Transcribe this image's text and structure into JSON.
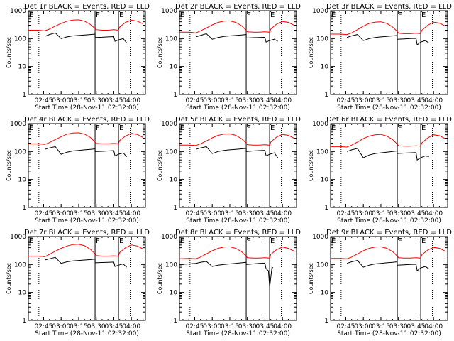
{
  "figure": {
    "xlabel": "Start Time (28-Nov-11 02:32:00)",
    "ylabel": "Counts/sec",
    "x_tick_labels": [
      "02:45",
      "03:00",
      "03:15",
      "03:30",
      "03:45",
      "04:00"
    ],
    "y_tick_labels": [
      "1",
      "10",
      "100",
      "1000"
    ],
    "colors": {
      "events": "#000000",
      "lld": "#ff0000",
      "axes": "#000000"
    }
  },
  "chart_data": [
    {
      "type": "line",
      "title": "Det 1r BLACK = Events, RED = LLD",
      "xlim": [
        "02:32",
        "04:12"
      ],
      "ylim": [
        1,
        1000
      ],
      "yscale": "log",
      "markers": [
        {
          "label": "E",
          "x": "02:32"
        },
        {
          "label": "F",
          "x": "03:29"
        },
        {
          "label": "E",
          "x": "03:49"
        }
      ],
      "dotted_lines_x": [
        "02:41",
        "03:59"
      ],
      "lld": {
        "x": [
          "02:32",
          "02:40",
          "02:46",
          "02:50",
          "02:55",
          "03:00",
          "03:05",
          "03:10",
          "03:15",
          "03:20",
          "03:25",
          "03:29",
          "03:30",
          "03:35",
          "03:40",
          "03:45",
          "03:49",
          "03:50",
          "03:55",
          "04:00",
          "04:05",
          "04:10"
        ],
        "y": [
          200,
          200,
          190,
          220,
          280,
          350,
          420,
          460,
          470,
          420,
          320,
          230,
          210,
          200,
          200,
          210,
          200,
          260,
          380,
          460,
          420,
          340
        ]
      },
      "events": {
        "x": [
          "02:46",
          "02:50",
          "02:55",
          "03:00",
          "03:05",
          "03:10",
          "03:15",
          "03:20",
          "03:25",
          "03:29",
          "03:29",
          "03:35",
          "03:40",
          "03:45",
          "03:46",
          "03:49",
          "03:53",
          "03:56"
        ],
        "y": [
          120,
          140,
          160,
          100,
          115,
          125,
          130,
          135,
          140,
          145,
          110,
          112,
          115,
          118,
          80,
          90,
          100,
          70
        ]
      }
    },
    {
      "type": "line",
      "title": "Det 2r BLACK = Events, RED = LLD",
      "xlim": [
        "02:32",
        "04:12"
      ],
      "ylim": [
        1,
        1000
      ],
      "yscale": "log",
      "markers": [
        {
          "label": "E",
          "x": "02:32"
        },
        {
          "label": "F",
          "x": "03:29"
        },
        {
          "label": "E",
          "x": "03:49"
        }
      ],
      "dotted_lines_x": [
        "02:41",
        "03:59"
      ],
      "lld": {
        "x": [
          "02:32",
          "02:40",
          "02:46",
          "02:50",
          "02:55",
          "03:00",
          "03:05",
          "03:10",
          "03:15",
          "03:20",
          "03:25",
          "03:29",
          "03:30",
          "03:35",
          "03:40",
          "03:45",
          "03:49",
          "03:50",
          "03:55",
          "04:00",
          "04:05",
          "04:10"
        ],
        "y": [
          170,
          170,
          160,
          190,
          240,
          310,
          380,
          420,
          430,
          380,
          290,
          200,
          175,
          170,
          170,
          175,
          170,
          220,
          330,
          410,
          380,
          300
        ]
      },
      "events": {
        "x": [
          "02:46",
          "02:50",
          "02:55",
          "03:00",
          "03:05",
          "03:10",
          "03:15",
          "03:20",
          "03:25",
          "03:29",
          "03:29",
          "03:35",
          "03:40",
          "03:45",
          "03:46",
          "03:49",
          "03:53",
          "03:56"
        ],
        "y": [
          115,
          130,
          150,
          95,
          110,
          120,
          125,
          130,
          135,
          140,
          105,
          108,
          110,
          112,
          75,
          85,
          95,
          80
        ]
      }
    },
    {
      "type": "line",
      "title": "Det 3r BLACK = Events, RED = LLD",
      "xlim": [
        "02:32",
        "04:12"
      ],
      "ylim": [
        1,
        1000
      ],
      "yscale": "log",
      "markers": [
        {
          "label": "E",
          "x": "02:32"
        },
        {
          "label": "F",
          "x": "03:29"
        },
        {
          "label": "E",
          "x": "03:49"
        }
      ],
      "dotted_lines_x": [
        "02:41",
        "03:59"
      ],
      "lld": {
        "x": [
          "02:32",
          "02:40",
          "02:46",
          "02:50",
          "02:55",
          "03:00",
          "03:05",
          "03:10",
          "03:15",
          "03:20",
          "03:25",
          "03:29",
          "03:30",
          "03:35",
          "03:40",
          "03:45",
          "03:49",
          "03:50",
          "03:55",
          "04:00",
          "04:05",
          "04:10"
        ],
        "y": [
          145,
          145,
          140,
          160,
          210,
          280,
          350,
          390,
          400,
          350,
          260,
          180,
          155,
          150,
          150,
          155,
          150,
          200,
          300,
          390,
          360,
          280
        ]
      },
      "events": {
        "x": [
          "02:46",
          "02:50",
          "02:55",
          "03:00",
          "03:05",
          "03:10",
          "03:15",
          "03:20",
          "03:25",
          "03:29",
          "03:29",
          "03:35",
          "03:40",
          "03:45",
          "03:46",
          "03:49",
          "03:53",
          "03:56"
        ],
        "y": [
          110,
          125,
          140,
          85,
          100,
          110,
          115,
          120,
          125,
          130,
          95,
          98,
          100,
          102,
          60,
          75,
          85,
          70
        ]
      }
    },
    {
      "type": "line",
      "title": "Det 4r BLACK = Events, RED = LLD",
      "xlim": [
        "02:32",
        "04:12"
      ],
      "ylim": [
        1,
        1000
      ],
      "yscale": "log",
      "markers": [
        {
          "label": "E",
          "x": "02:32"
        },
        {
          "label": "F",
          "x": "03:29"
        },
        {
          "label": "E",
          "x": "03:49"
        }
      ],
      "dotted_lines_x": [
        "02:41",
        "03:59"
      ],
      "lld": {
        "x": [
          "02:32",
          "02:40",
          "02:46",
          "02:50",
          "02:55",
          "03:00",
          "03:05",
          "03:10",
          "03:15",
          "03:20",
          "03:25",
          "03:29",
          "03:30",
          "03:35",
          "03:40",
          "03:45",
          "03:49",
          "03:50",
          "03:55",
          "04:00",
          "04:05",
          "04:10"
        ],
        "y": [
          190,
          190,
          180,
          210,
          270,
          340,
          420,
          460,
          470,
          420,
          320,
          220,
          195,
          190,
          190,
          195,
          190,
          250,
          360,
          450,
          410,
          320
        ]
      },
      "events": {
        "x": [
          "02:46",
          "02:50",
          "02:55",
          "03:00",
          "03:05",
          "03:10",
          "03:15",
          "03:20",
          "03:25",
          "03:29",
          "03:29",
          "03:35",
          "03:40",
          "03:45",
          "03:46",
          "03:49",
          "03:53",
          "03:56"
        ],
        "y": [
          120,
          135,
          150,
          80,
          95,
          105,
          110,
          115,
          120,
          125,
          100,
          102,
          105,
          108,
          70,
          80,
          90,
          65
        ]
      }
    },
    {
      "type": "line",
      "title": "Det 5r BLACK = Events, RED = LLD",
      "xlim": [
        "02:32",
        "04:12"
      ],
      "ylim": [
        1,
        1000
      ],
      "yscale": "log",
      "markers": [
        {
          "label": "E",
          "x": "02:32"
        },
        {
          "label": "F",
          "x": "03:29"
        },
        {
          "label": "E",
          "x": "03:49"
        }
      ],
      "dotted_lines_x": [
        "02:41",
        "03:59"
      ],
      "lld": {
        "x": [
          "02:32",
          "02:40",
          "02:46",
          "02:50",
          "02:55",
          "03:00",
          "03:05",
          "03:10",
          "03:15",
          "03:20",
          "03:25",
          "03:29",
          "03:30",
          "03:35",
          "03:40",
          "03:45",
          "03:49",
          "03:50",
          "03:55",
          "04:00",
          "04:05",
          "04:10"
        ],
        "y": [
          170,
          170,
          165,
          190,
          240,
          310,
          380,
          420,
          430,
          380,
          290,
          200,
          175,
          170,
          170,
          175,
          170,
          220,
          330,
          410,
          380,
          300
        ]
      },
      "events": {
        "x": [
          "02:46",
          "02:50",
          "02:55",
          "03:00",
          "03:05",
          "03:10",
          "03:15",
          "03:20",
          "03:25",
          "03:29",
          "03:29",
          "03:35",
          "03:40",
          "03:45",
          "03:46",
          "03:49",
          "03:53",
          "03:56"
        ],
        "y": [
          120,
          135,
          150,
          85,
          100,
          110,
          115,
          120,
          125,
          130,
          100,
          105,
          108,
          110,
          70,
          80,
          90,
          60
        ]
      }
    },
    {
      "type": "line",
      "title": "Det 6r BLACK = Events, RED = LLD",
      "xlim": [
        "02:32",
        "04:12"
      ],
      "ylim": [
        1,
        1000
      ],
      "yscale": "log",
      "markers": [
        {
          "label": "E",
          "x": "02:32"
        },
        {
          "label": "F",
          "x": "03:29"
        },
        {
          "label": "E",
          "x": "03:49"
        }
      ],
      "dotted_lines_x": [
        "02:41",
        "03:59"
      ],
      "lld": {
        "x": [
          "02:32",
          "02:40",
          "02:46",
          "02:50",
          "02:55",
          "03:00",
          "03:05",
          "03:10",
          "03:15",
          "03:20",
          "03:25",
          "03:29",
          "03:30",
          "03:35",
          "03:40",
          "03:45",
          "03:49",
          "03:50",
          "03:55",
          "04:00",
          "04:05",
          "04:10"
        ],
        "y": [
          150,
          150,
          145,
          170,
          220,
          290,
          360,
          400,
          410,
          360,
          270,
          185,
          160,
          155,
          155,
          160,
          155,
          205,
          310,
          400,
          370,
          290
        ]
      },
      "events": {
        "x": [
          "02:46",
          "02:50",
          "02:55",
          "03:00",
          "03:05",
          "03:10",
          "03:15",
          "03:20",
          "03:25",
          "03:29",
          "03:29",
          "03:35",
          "03:40",
          "03:45",
          "03:46",
          "03:49",
          "03:53",
          "03:56"
        ],
        "y": [
          100,
          115,
          130,
          60,
          75,
          85,
          90,
          95,
          100,
          105,
          85,
          88,
          90,
          92,
          50,
          60,
          70,
          65
        ]
      }
    },
    {
      "type": "line",
      "title": "Det 7r BLACK = Events, RED = LLD",
      "xlim": [
        "02:32",
        "04:12"
      ],
      "ylim": [
        1,
        1000
      ],
      "yscale": "log",
      "markers": [
        {
          "label": "E",
          "x": "02:32"
        },
        {
          "label": "F",
          "x": "03:29"
        },
        {
          "label": "E",
          "x": "03:49"
        }
      ],
      "dotted_lines_x": [
        "02:41",
        "03:59"
      ],
      "lld": {
        "x": [
          "02:32",
          "02:40",
          "02:46",
          "02:50",
          "02:55",
          "03:00",
          "03:05",
          "03:10",
          "03:15",
          "03:20",
          "03:25",
          "03:29",
          "03:30",
          "03:35",
          "03:40",
          "03:45",
          "03:49",
          "03:50",
          "03:55",
          "04:00",
          "04:05",
          "04:10"
        ],
        "y": [
          200,
          200,
          190,
          230,
          300,
          380,
          460,
          520,
          530,
          470,
          350,
          240,
          210,
          200,
          200,
          205,
          200,
          270,
          400,
          500,
          460,
          360
        ]
      },
      "events": {
        "x": [
          "02:46",
          "02:50",
          "02:55",
          "03:00",
          "03:05",
          "03:10",
          "03:15",
          "03:20",
          "03:25",
          "03:29",
          "03:29",
          "03:35",
          "03:40",
          "03:45",
          "03:46",
          "03:49",
          "03:53",
          "03:56"
        ],
        "y": [
          145,
          160,
          180,
          110,
          125,
          135,
          140,
          145,
          150,
          155,
          115,
          118,
          120,
          122,
          85,
          95,
          105,
          80
        ]
      }
    },
    {
      "type": "line",
      "title": "Det 8r BLACK = Events, RED = LLD",
      "xlim": [
        "02:32",
        "04:12"
      ],
      "ylim": [
        1,
        1000
      ],
      "yscale": "log",
      "markers": [
        {
          "label": "E",
          "x": "02:32"
        },
        {
          "label": "F",
          "x": "03:29"
        },
        {
          "label": "E",
          "x": "03:49"
        }
      ],
      "dotted_lines_x": [
        "02:41",
        "03:59"
      ],
      "lld": {
        "x": [
          "02:32",
          "02:40",
          "02:46",
          "02:50",
          "02:55",
          "03:00",
          "03:05",
          "03:10",
          "03:15",
          "03:20",
          "03:25",
          "03:29",
          "03:30",
          "03:35",
          "03:40",
          "03:45",
          "03:49",
          "03:50",
          "03:55",
          "04:00",
          "04:05",
          "04:10"
        ],
        "y": [
          160,
          165,
          160,
          185,
          240,
          310,
          380,
          420,
          430,
          380,
          290,
          200,
          175,
          170,
          170,
          175,
          170,
          230,
          340,
          420,
          380,
          300
        ]
      },
      "events": {
        "x": [
          "02:33",
          "02:40",
          "02:46",
          "02:50",
          "02:55",
          "03:00",
          "03:05",
          "03:10",
          "03:15",
          "03:20",
          "03:25",
          "03:29",
          "03:29",
          "03:35",
          "03:40",
          "03:45",
          "03:46",
          "03:48",
          "03:49",
          "03:51",
          "03:52"
        ],
        "y": [
          100,
          105,
          110,
          120,
          130,
          85,
          95,
          100,
          105,
          110,
          115,
          120,
          100,
          105,
          110,
          112,
          70,
          60,
          15,
          80,
          75
        ]
      }
    },
    {
      "type": "line",
      "title": "Det 9r BLACK = Events, RED = LLD",
      "xlim": [
        "02:32",
        "04:12"
      ],
      "ylim": [
        1,
        1000
      ],
      "yscale": "log",
      "markers": [
        {
          "label": "E",
          "x": "02:32"
        },
        {
          "label": "F",
          "x": "03:29"
        },
        {
          "label": "E",
          "x": "03:49"
        }
      ],
      "dotted_lines_x": [
        "02:41",
        "03:59"
      ],
      "lld": {
        "x": [
          "02:32",
          "02:40",
          "02:46",
          "02:50",
          "02:55",
          "03:00",
          "03:05",
          "03:10",
          "03:15",
          "03:20",
          "03:25",
          "03:29",
          "03:30",
          "03:35",
          "03:40",
          "03:45",
          "03:49",
          "03:50",
          "03:55",
          "04:00",
          "04:05",
          "04:10"
        ],
        "y": [
          165,
          165,
          160,
          185,
          240,
          310,
          380,
          420,
          430,
          380,
          290,
          200,
          175,
          170,
          170,
          175,
          170,
          225,
          330,
          410,
          380,
          300
        ]
      },
      "events": {
        "x": [
          "02:46",
          "02:50",
          "02:55",
          "03:00",
          "03:05",
          "03:10",
          "03:15",
          "03:20",
          "03:25",
          "03:29",
          "03:29",
          "03:35",
          "03:40",
          "03:45",
          "03:46",
          "03:49",
          "03:53",
          "03:56"
        ],
        "y": [
          110,
          125,
          140,
          80,
          95,
          105,
          110,
          115,
          120,
          125,
          95,
          98,
          100,
          102,
          60,
          75,
          85,
          70
        ]
      }
    }
  ]
}
